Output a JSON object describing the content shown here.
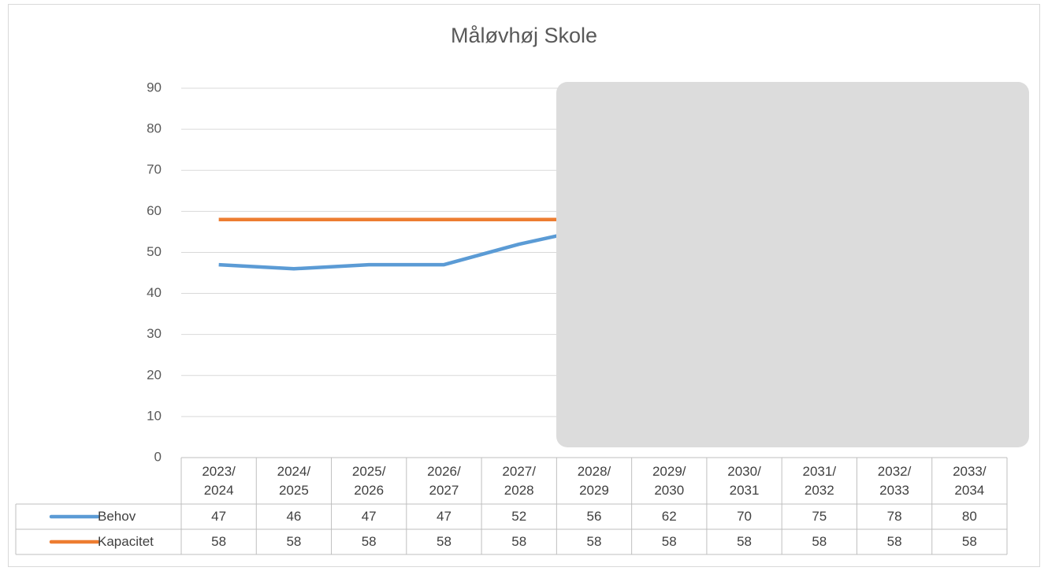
{
  "chart_data": {
    "type": "line",
    "title": "Måløvhøj Skole",
    "categories": [
      "2023/2024",
      "2024/2025",
      "2025/2026",
      "2026/2027",
      "2027/2028",
      "2028/2029",
      "2029/2030",
      "2030/2031",
      "2031/2032",
      "2032/2033",
      "2033/2034"
    ],
    "series": [
      {
        "name": "Behov",
        "color": "#5b9bd5",
        "values": [
          47,
          46,
          47,
          47,
          52,
          56,
          62,
          70,
          75,
          78,
          80
        ]
      },
      {
        "name": "Kapacitet",
        "color": "#ed7d31",
        "values": [
          58,
          58,
          58,
          58,
          58,
          58,
          58,
          58,
          58,
          58,
          58
        ]
      }
    ],
    "ylim": [
      0,
      90
    ],
    "yticks": [
      0,
      10,
      20,
      30,
      40,
      50,
      60,
      70,
      80,
      90
    ],
    "grid": true
  }
}
